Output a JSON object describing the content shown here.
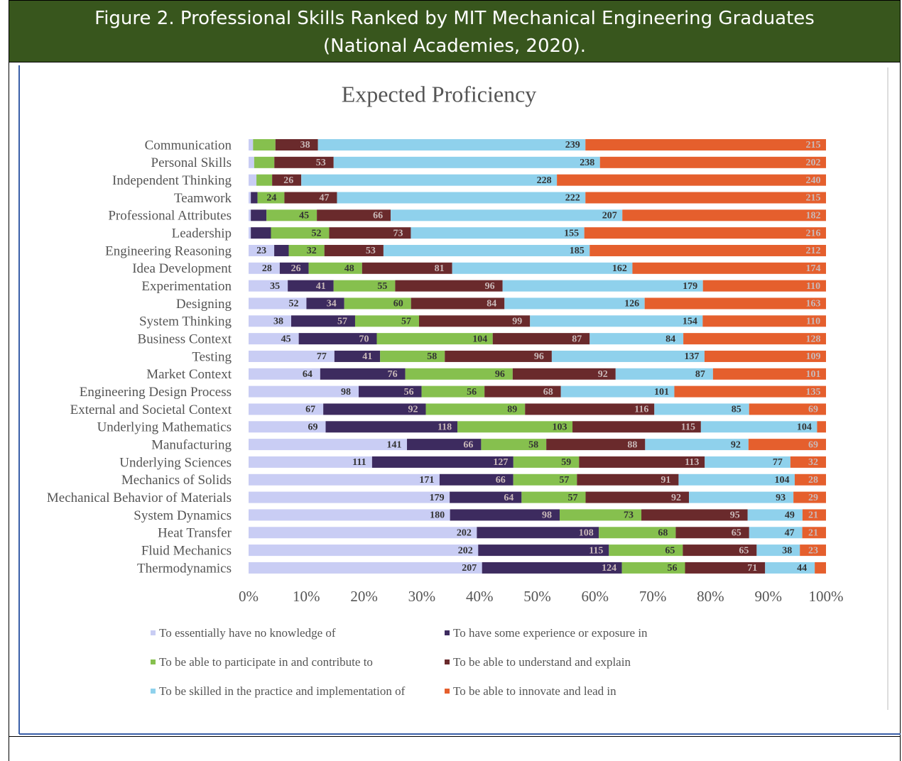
{
  "figure_caption": [
    "Figure 2.  Professional Skills Ranked by MIT Mechanical Engineering Graduates",
    "(National Academies, 2020)."
  ],
  "chart_data": {
    "type": "bar",
    "orientation": "horizontal",
    "stacked": "percent",
    "title": "Expected Proficiency",
    "categories": [
      "Communication",
      "Personal Skills",
      "Independent Thinking",
      "Teamwork",
      "Professional Attributes",
      "Leadership",
      "Engineering Reasoning",
      "Idea Development",
      "Experimentation",
      "Designing",
      "System Thinking",
      "Business Context",
      "Testing",
      "Market Context",
      "Engineering Design Process",
      "External and Societal Context",
      "Underlying Mathematics",
      "Manufacturing",
      "Underlying Sciences",
      "Mechanics of Solids",
      "Mechanical Behavior of Materials",
      "System Dynamics",
      "Heat Transfer",
      "Fluid Mechanics",
      "Thermodynamics"
    ],
    "series": [
      {
        "name": "To essentially have no knowledge of",
        "color": "#c9cdf4",
        "values": [
          4,
          5,
          7,
          2,
          2,
          2,
          23,
          28,
          35,
          52,
          38,
          45,
          77,
          64,
          98,
          67,
          69,
          141,
          111,
          171,
          179,
          180,
          202,
          202,
          207
        ]
      },
      {
        "name": "To have some experience or exposure in",
        "color": "#3d2b5f",
        "values": [
          0,
          0,
          0,
          6,
          14,
          18,
          13,
          26,
          41,
          34,
          57,
          70,
          41,
          76,
          56,
          92,
          118,
          66,
          127,
          66,
          64,
          98,
          108,
          115,
          124
        ]
      },
      {
        "name": "To be able to participate in and contribute to",
        "color": "#86c04e",
        "values": [
          20,
          18,
          14,
          24,
          45,
          52,
          32,
          48,
          55,
          60,
          57,
          104,
          58,
          96,
          56,
          89,
          103,
          58,
          59,
          57,
          57,
          73,
          68,
          65,
          56
        ]
      },
      {
        "name": "To be able to understand and explain",
        "color": "#6a2a2c",
        "values": [
          38,
          53,
          26,
          47,
          66,
          73,
          53,
          81,
          96,
          84,
          99,
          87,
          96,
          92,
          68,
          116,
          115,
          88,
          113,
          91,
          92,
          95,
          65,
          65,
          71
        ]
      },
      {
        "name": "To be skilled in the practice and implementation of",
        "color": "#8fd1ec",
        "values": [
          239,
          238,
          228,
          222,
          207,
          155,
          185,
          162,
          179,
          126,
          154,
          84,
          137,
          87,
          101,
          85,
          104,
          92,
          77,
          104,
          93,
          49,
          47,
          38,
          44
        ]
      },
      {
        "name": "To be able to innovate and lead in",
        "color": "#e55f2d",
        "values": [
          215,
          202,
          240,
          215,
          182,
          216,
          212,
          174,
          110,
          163,
          110,
          128,
          109,
          101,
          135,
          69,
          8,
          69,
          32,
          28,
          29,
          21,
          21,
          23,
          10
        ]
      }
    ],
    "xlim": [
      0,
      100
    ],
    "xticks": [
      {
        "value": 0,
        "label": "0%"
      },
      {
        "value": 10,
        "label": "10%"
      },
      {
        "value": 20,
        "label": "20%"
      },
      {
        "value": 30,
        "label": "30%"
      },
      {
        "value": 40,
        "label": "40%"
      },
      {
        "value": 50,
        "label": "50%"
      },
      {
        "value": 60,
        "label": "60%"
      },
      {
        "value": 70,
        "label": "70%"
      },
      {
        "value": 80,
        "label": "80%"
      },
      {
        "value": 90,
        "label": "90%"
      },
      {
        "value": 100,
        "label": "100%"
      }
    ],
    "grid": false,
    "legend": "bottom"
  }
}
